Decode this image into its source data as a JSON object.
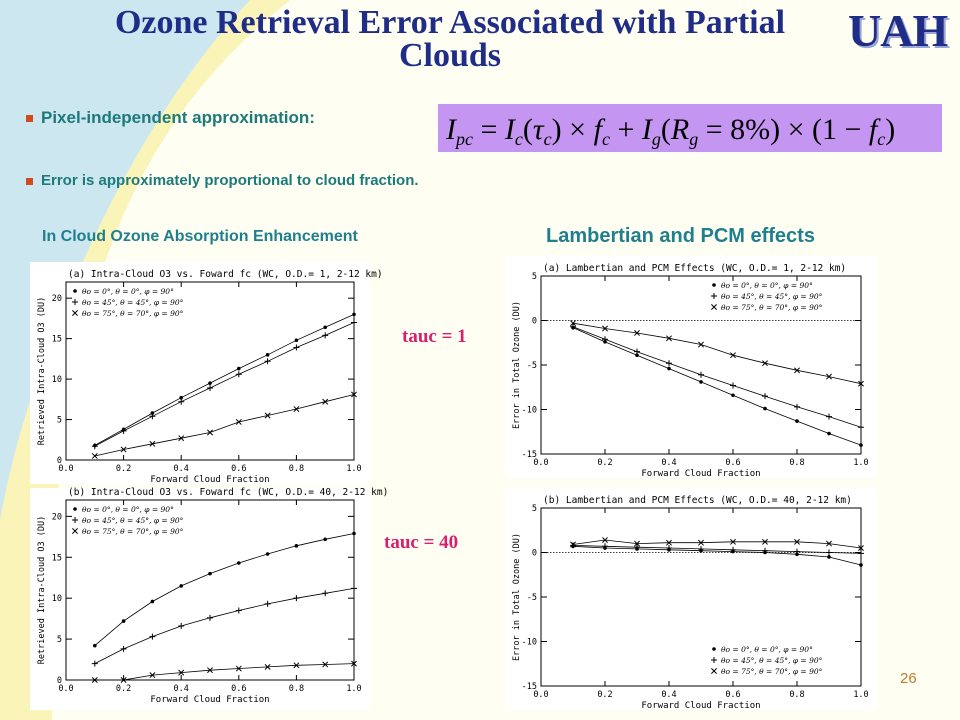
{
  "slide": {
    "title": "Ozone Retrieval Error Associated with Partial Clouds",
    "logo": "UAH",
    "bullet1": "Pixel-independent approximation:",
    "bullet2": "Error is approximately proportional to cloud fraction.",
    "equation": "I_pc = I_c(τ_c) × f_c + I_g(R_g = 8%) × (1 − f_c)",
    "left_heading": "In Cloud Ozone Absorption Enhancement",
    "right_heading": "Lambertian and PCM effects",
    "tauc1_label": "tauc = 1",
    "tauc40_label": "tauc = 40",
    "page_number": "26",
    "colors": {
      "title": "#1f2d86",
      "bullet_text": "#1d7a7a",
      "bullet_marker": "#d34a1c",
      "equation_bg": "#c496f2",
      "tauc_label": "#d81f6f",
      "page_number": "#c47a2a"
    }
  },
  "chart_data": [
    {
      "type": "line",
      "title": "(a) Intra-Cloud O3 vs. Foward fc (WC, O.D.= 1, 2-12 km)",
      "xlabel": "Forward Cloud Fraction",
      "ylabel": "Retrieved Intra-Cloud O3 (DU)",
      "xlim": [
        0.0,
        1.0
      ],
      "ylim": [
        0,
        22
      ],
      "xticks": [
        0.0,
        0.2,
        0.4,
        0.6,
        0.8,
        1.0
      ],
      "yticks": [
        0,
        5,
        10,
        15,
        20
      ],
      "zero_line": false,
      "legend_position": "top-left",
      "x": [
        0.1,
        0.2,
        0.3,
        0.4,
        0.5,
        0.6,
        0.7,
        0.8,
        0.9,
        1.0
      ],
      "series": [
        {
          "name": "θo = 0°, θ = 0°, φ = 90°",
          "marker": "dot",
          "values": [
            1.8,
            3.8,
            5.8,
            7.7,
            9.5,
            11.3,
            13.0,
            14.8,
            16.4,
            18.0
          ]
        },
        {
          "name": "θo = 45°, θ = 45°, φ = 90°",
          "marker": "plus",
          "values": [
            1.7,
            3.6,
            5.4,
            7.2,
            8.9,
            10.6,
            12.2,
            13.9,
            15.4,
            17.0
          ]
        },
        {
          "name": "θo = 75°, θ = 70°, φ = 90°",
          "marker": "cross",
          "values": [
            0.5,
            1.3,
            2.0,
            2.7,
            3.4,
            4.7,
            5.5,
            6.3,
            7.2,
            8.1
          ]
        }
      ]
    },
    {
      "type": "line",
      "title": "(a) Lambertian and PCM Effects (WC, O.D.= 1, 2-12 km)",
      "xlabel": "Forward Cloud Fraction",
      "ylabel": "Error in Total Ozone (DU)",
      "xlim": [
        0.0,
        1.0
      ],
      "ylim": [
        -15,
        5
      ],
      "xticks": [
        0.0,
        0.2,
        0.4,
        0.6,
        0.8,
        1.0
      ],
      "yticks": [
        5,
        0,
        -5,
        -10,
        -15
      ],
      "zero_line": true,
      "legend_position": "top-right",
      "x": [
        0.1,
        0.2,
        0.3,
        0.4,
        0.5,
        0.6,
        0.7,
        0.8,
        0.9,
        1.0
      ],
      "series": [
        {
          "name": "θo = 0°, θ = 0°, φ = 90°",
          "marker": "dot",
          "values": [
            -0.8,
            -2.4,
            -3.9,
            -5.4,
            -6.9,
            -8.4,
            -9.9,
            -11.3,
            -12.7,
            -14.0
          ]
        },
        {
          "name": "θo = 45°, θ = 45°, φ = 90°",
          "marker": "plus",
          "values": [
            -0.7,
            -2.1,
            -3.5,
            -4.8,
            -6.1,
            -7.3,
            -8.5,
            -9.7,
            -10.8,
            -12.0
          ]
        },
        {
          "name": "θo = 75°, θ = 70°, φ = 90°",
          "marker": "cross",
          "values": [
            -0.3,
            -0.9,
            -1.4,
            -2.0,
            -2.7,
            -3.9,
            -4.8,
            -5.6,
            -6.3,
            -7.1
          ]
        }
      ]
    },
    {
      "type": "line",
      "title": "(b) Intra-Cloud O3 vs. Foward fc (WC, O.D.= 40, 2-12 km)",
      "xlabel": "Forward Cloud Fraction",
      "ylabel": "Retrieved Intra-Cloud O3 (DU)",
      "xlim": [
        0.0,
        1.0
      ],
      "ylim": [
        0,
        22
      ],
      "xticks": [
        0.0,
        0.2,
        0.4,
        0.6,
        0.8,
        1.0
      ],
      "yticks": [
        0,
        5,
        10,
        15,
        20
      ],
      "zero_line": false,
      "legend_position": "top-left",
      "x": [
        0.1,
        0.2,
        0.3,
        0.4,
        0.5,
        0.6,
        0.7,
        0.8,
        0.9,
        1.0
      ],
      "series": [
        {
          "name": "θo = 0°, θ = 0°, φ = 90°",
          "marker": "dot",
          "values": [
            4.2,
            7.2,
            9.6,
            11.5,
            13.0,
            14.3,
            15.4,
            16.4,
            17.2,
            17.9
          ]
        },
        {
          "name": "θo = 45°, θ = 45°, φ = 90°",
          "marker": "plus",
          "values": [
            2.0,
            3.8,
            5.3,
            6.6,
            7.6,
            8.5,
            9.3,
            10.0,
            10.6,
            11.2
          ]
        },
        {
          "name": "θo = 75°, θ = 70°, φ = 90°",
          "marker": "cross",
          "values": [
            0.0,
            0.0,
            0.6,
            0.9,
            1.2,
            1.4,
            1.6,
            1.8,
            1.9,
            2.0
          ]
        }
      ]
    },
    {
      "type": "line",
      "title": "(b) Lambertian and PCM Effects (WC, O.D.= 40, 2-12 km)",
      "xlabel": "Forward Cloud Fraction",
      "ylabel": "Error in Total Ozone (DU)",
      "xlim": [
        0.0,
        1.0
      ],
      "ylim": [
        -15,
        5
      ],
      "xticks": [
        0.0,
        0.2,
        0.4,
        0.6,
        0.8,
        1.0
      ],
      "yticks": [
        5,
        0,
        -5,
        -10,
        -15
      ],
      "zero_line": true,
      "legend_position": "bottom-right",
      "x": [
        0.1,
        0.2,
        0.3,
        0.4,
        0.5,
        0.6,
        0.7,
        0.8,
        0.9,
        1.0
      ],
      "series": [
        {
          "name": "θo = 0°, θ = 0°, φ = 90°",
          "marker": "dot",
          "values": [
            0.7,
            0.5,
            0.4,
            0.3,
            0.2,
            0.1,
            0.0,
            -0.2,
            -0.5,
            -1.4
          ]
        },
        {
          "name": "θo = 45°, θ = 45°, φ = 90°",
          "marker": "plus",
          "values": [
            0.8,
            0.7,
            0.6,
            0.5,
            0.4,
            0.3,
            0.2,
            0.1,
            0.0,
            -0.1
          ]
        },
        {
          "name": "θo = 75°, θ = 70°, φ = 90°",
          "marker": "cross",
          "values": [
            0.9,
            1.4,
            1.0,
            1.1,
            1.1,
            1.2,
            1.2,
            1.2,
            1.0,
            0.5
          ]
        }
      ]
    }
  ]
}
